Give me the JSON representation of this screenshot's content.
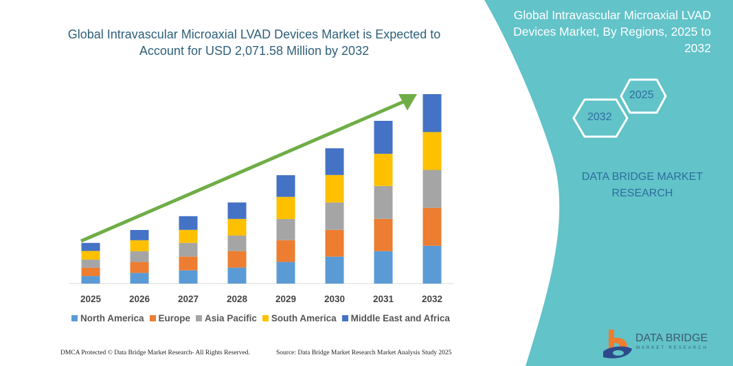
{
  "title": "Global Intravascular Microaxial LVAD Devices Market is Expected to Account for USD 2,071.58 Million by 2032",
  "side_panel": {
    "title": "Global Intravascular Microaxial LVAD Devices Market, By Regions, 2025 to 2032",
    "hex_start": "2025",
    "hex_end": "2032",
    "brand": "DATA BRIDGE MARKET RESEARCH",
    "accent_color": "#62c3c9"
  },
  "logo": {
    "name": "DATA BRIDGE",
    "sub": "MARKET RESEARCH"
  },
  "footer": {
    "left": "DMCA Protected © Data Bridge Market Research- All Rights Reserved.",
    "right": "Source: Data Bridge Market Research Market Analysis Study 2025"
  },
  "chart_data": {
    "type": "bar",
    "stacked": true,
    "title": "Global Intravascular Microaxial LVAD Devices Market is Expected to Account for USD 2,071.58 Million by 2032",
    "xlabel": "",
    "ylabel": "",
    "grid": false,
    "legend": "bottom",
    "trend_arrow": true,
    "categories": [
      "2025",
      "2026",
      "2027",
      "2028",
      "2029",
      "2030",
      "2031",
      "2032"
    ],
    "series": [
      {
        "name": "North America",
        "color": "#5b9bd5",
        "values": [
          82,
          117,
          145,
          175,
          237,
          295,
          355,
          414
        ]
      },
      {
        "name": "Europe",
        "color": "#ed7d31",
        "values": [
          92,
          120,
          150,
          180,
          237,
          292,
          352,
          414
        ]
      },
      {
        "name": "Asia Pacific",
        "color": "#a5a5a5",
        "values": [
          88,
          117,
          150,
          170,
          232,
          300,
          360,
          414
        ]
      },
      {
        "name": "South America",
        "color": "#ffc000",
        "values": [
          95,
          120,
          142,
          182,
          242,
          300,
          352,
          414
        ]
      },
      {
        "name": "Middle East and Africa",
        "color": "#4472c4",
        "values": [
          88,
          112,
          150,
          180,
          237,
          292,
          360,
          415
        ]
      }
    ]
  }
}
